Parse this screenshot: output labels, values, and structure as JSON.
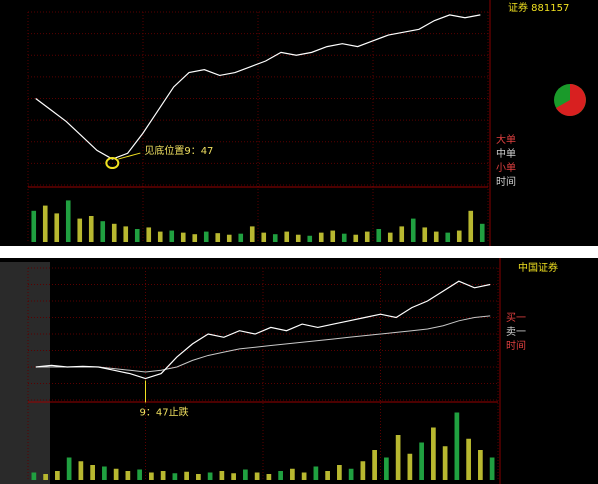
{
  "panels": [
    {
      "title": "证券 881157",
      "annotation": "见底位置9：47",
      "price": {
        "ylim": [
          -2,
          4
        ],
        "values": [
          1.0,
          0.6,
          0.2,
          -0.3,
          -0.8,
          -1.1,
          -0.9,
          -0.2,
          0.6,
          1.4,
          1.9,
          2.0,
          1.8,
          1.9,
          2.1,
          2.3,
          2.6,
          2.5,
          2.6,
          2.8,
          2.9,
          2.8,
          3.0,
          3.2,
          3.3,
          3.4,
          3.7,
          3.9,
          3.8,
          3.9
        ]
      },
      "volume": {
        "ylim": [
          0,
          100
        ],
        "values": [
          60,
          70,
          55,
          80,
          45,
          50,
          40,
          35,
          30,
          25,
          28,
          20,
          22,
          18,
          15,
          20,
          17,
          14,
          16,
          30,
          18,
          15,
          20,
          14,
          12,
          18,
          22,
          16,
          14,
          20,
          25,
          18,
          30,
          45,
          28,
          20,
          18,
          22,
          60,
          35
        ]
      },
      "sidebar": [
        "大单",
        "中单",
        "小单",
        "时间"
      ]
    },
    {
      "title": "中国证券",
      "annotation": "9：47止跌",
      "price": {
        "ylim": [
          -1,
          3
        ],
        "values": [
          0,
          0.05,
          0,
          0.02,
          0,
          -0.1,
          -0.2,
          -0.35,
          -0.2,
          0.3,
          0.7,
          1.0,
          0.9,
          1.1,
          1.0,
          1.2,
          1.1,
          1.3,
          1.2,
          1.3,
          1.4,
          1.5,
          1.6,
          1.5,
          1.8,
          2.0,
          2.3,
          2.6,
          2.4,
          2.5
        ],
        "average": [
          0,
          0,
          0,
          0,
          0,
          -0.05,
          -0.1,
          -0.15,
          -0.1,
          0,
          0.2,
          0.35,
          0.45,
          0.55,
          0.6,
          0.65,
          0.7,
          0.75,
          0.8,
          0.85,
          0.9,
          0.95,
          1.0,
          1.05,
          1.1,
          1.15,
          1.25,
          1.4,
          1.5,
          1.55
        ]
      },
      "volume": {
        "ylim": [
          0,
          100
        ],
        "values": [
          10,
          8,
          12,
          30,
          25,
          20,
          18,
          15,
          12,
          14,
          10,
          12,
          9,
          11,
          8,
          10,
          12,
          9,
          14,
          10,
          8,
          12,
          15,
          10,
          18,
          12,
          20,
          15,
          25,
          40,
          30,
          60,
          35,
          50,
          70,
          45,
          90,
          55,
          40,
          30
        ]
      },
      "sidebar": [
        "买一",
        "卖一",
        "时间"
      ]
    }
  ]
}
